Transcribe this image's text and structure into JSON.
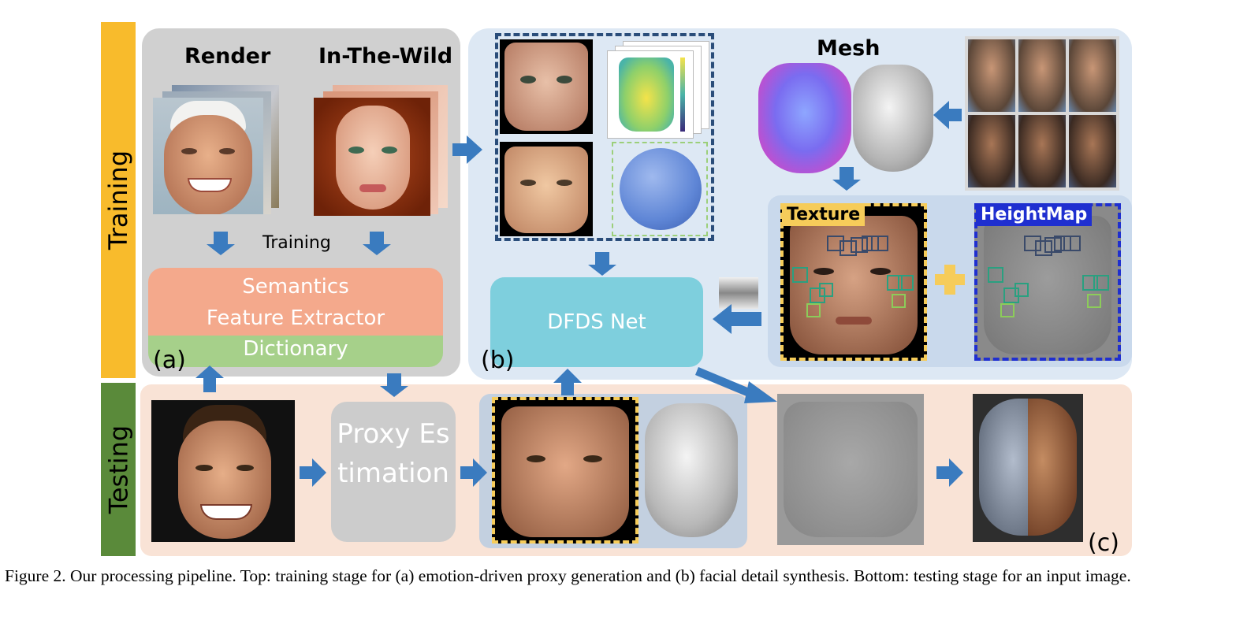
{
  "stages": {
    "training": "Training",
    "testing": "Testing"
  },
  "panel_a": {
    "render_label": "Render",
    "wild_label": "In-The-Wild",
    "training_label": "Training",
    "extractor_label": "Semantics Feature Extractor",
    "dictionary_label": "Dictionary",
    "tag": "(a)"
  },
  "panel_b": {
    "mesh_label": "Mesh",
    "texture_label": "Texture",
    "heightmap_label": "HeightMap",
    "net_label": "DFDS Net",
    "tag": "(b)"
  },
  "panel_c": {
    "proxy_label": "Proxy Estimation",
    "tag": "(c)"
  },
  "caption": "Figure 2. Our processing pipeline. Top: training stage for (a) emotion-driven proxy generation and (b) facial detail synthesis. Bottom: testing stage for an input image.",
  "colors": {
    "training_bar": "#f8bb2c",
    "testing_bar": "#5a8a3a",
    "panel_a_bg": "#d0d0d0",
    "panel_b_bg": "#dde8f4",
    "testing_bg": "#f9e3d6",
    "extractor": "#f4a98c",
    "dictionary": "#a6d08a",
    "net": "#7ecfdd",
    "proxy": "#cccccc",
    "arrow": "#3a7bbf",
    "texture_border": "#f6cc5a",
    "heightmap_border": "#1f2fd0"
  }
}
